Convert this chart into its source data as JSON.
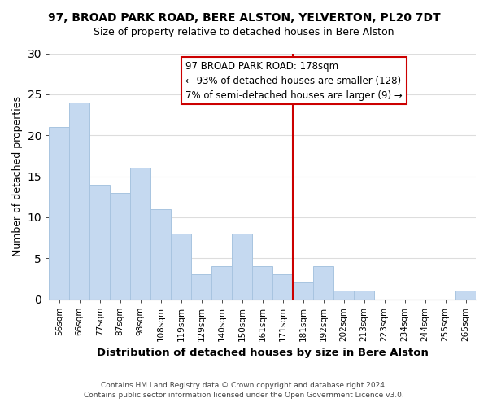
{
  "title": "97, BROAD PARK ROAD, BERE ALSTON, YELVERTON, PL20 7DT",
  "subtitle": "Size of property relative to detached houses in Bere Alston",
  "xlabel": "Distribution of detached houses by size in Bere Alston",
  "ylabel": "Number of detached properties",
  "bin_labels": [
    "56sqm",
    "66sqm",
    "77sqm",
    "87sqm",
    "98sqm",
    "108sqm",
    "119sqm",
    "129sqm",
    "140sqm",
    "150sqm",
    "161sqm",
    "171sqm",
    "181sqm",
    "192sqm",
    "202sqm",
    "213sqm",
    "223sqm",
    "234sqm",
    "244sqm",
    "255sqm",
    "265sqm"
  ],
  "bar_heights": [
    21,
    24,
    14,
    13,
    16,
    11,
    8,
    3,
    4,
    8,
    4,
    3,
    2,
    4,
    1,
    1,
    0,
    0,
    0,
    0,
    1
  ],
  "bar_color": "#c5d9f0",
  "bar_edge_color": "#a8c4e0",
  "vline_x_index": 12,
  "vline_color": "#cc0000",
  "annotation_line1": "97 BROAD PARK ROAD: 178sqm",
  "annotation_line2": "← 93% of detached houses are smaller (128)",
  "annotation_line3": "7% of semi-detached houses are larger (9) →",
  "annotation_box_color": "#ffffff",
  "annotation_box_edge": "#cc0000",
  "ylim": [
    0,
    30
  ],
  "yticks": [
    0,
    5,
    10,
    15,
    20,
    25,
    30
  ],
  "footer_line1": "Contains HM Land Registry data © Crown copyright and database right 2024.",
  "footer_line2": "Contains public sector information licensed under the Open Government Licence v3.0.",
  "background_color": "#ffffff",
  "grid_color": "#dddddd"
}
